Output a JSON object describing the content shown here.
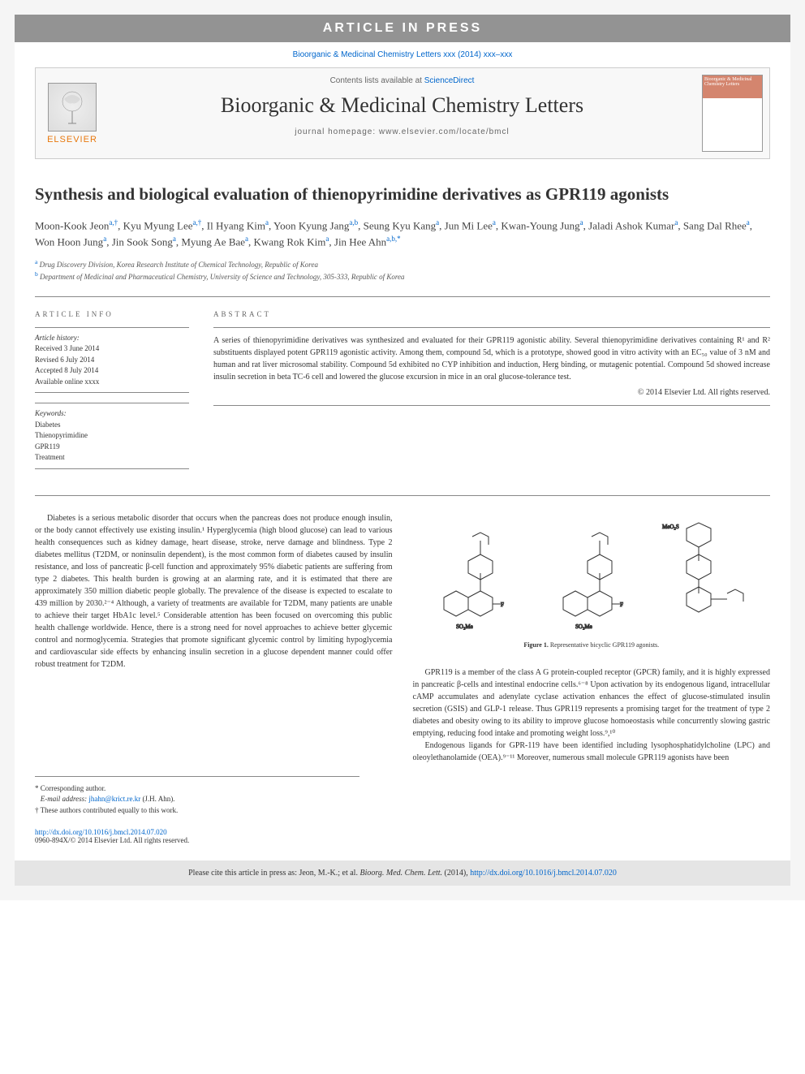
{
  "banner": "ARTICLE IN PRESS",
  "journalRef": "Bioorganic & Medicinal Chemistry Letters xxx (2014) xxx–xxx",
  "header": {
    "publisherText": "ELSEVIER",
    "contentsPrefix": "Contents lists available at ",
    "contentsLink": "ScienceDirect",
    "journalTitle": "Bioorganic & Medicinal Chemistry Letters",
    "homepagePrefix": "journal homepage: ",
    "homepage": "www.elsevier.com/locate/bmcl",
    "coverLabel": "Bioorganic & Medicinal Chemistry Letters"
  },
  "title": "Synthesis and biological evaluation of thienopyrimidine derivatives as GPR119 agonists",
  "authors": [
    {
      "name": "Moon-Kook Jeon",
      "sup": "a,†"
    },
    {
      "name": "Kyu Myung Lee",
      "sup": "a,†"
    },
    {
      "name": "Il Hyang Kim",
      "sup": "a"
    },
    {
      "name": "Yoon Kyung Jang",
      "sup": "a,b"
    },
    {
      "name": "Seung Kyu Kang",
      "sup": "a"
    },
    {
      "name": "Jun Mi Lee",
      "sup": "a"
    },
    {
      "name": "Kwan-Young Jung",
      "sup": "a"
    },
    {
      "name": "Jaladi Ashok Kumar",
      "sup": "a"
    },
    {
      "name": "Sang Dal Rhee",
      "sup": "a"
    },
    {
      "name": "Won Hoon Jung",
      "sup": "a"
    },
    {
      "name": "Jin Sook Song",
      "sup": "a"
    },
    {
      "name": "Myung Ae Bae",
      "sup": "a"
    },
    {
      "name": "Kwang Rok Kim",
      "sup": "a"
    },
    {
      "name": "Jin Hee Ahn",
      "sup": "a,b,*"
    }
  ],
  "affiliations": [
    {
      "sup": "a",
      "text": "Drug Discovery Division, Korea Research Institute of Chemical Technology, Republic of Korea"
    },
    {
      "sup": "b",
      "text": "Department of Medicinal and Pharmaceutical Chemistry, University of Science and Technology, 305-333, Republic of Korea"
    }
  ],
  "articleInfo": {
    "heading": "ARTICLE INFO",
    "historyLabel": "Article history:",
    "received": "Received 3 June 2014",
    "revised": "Revised 6 July 2014",
    "accepted": "Accepted 8 July 2014",
    "available": "Available online xxxx",
    "keywordsLabel": "Keywords:",
    "keywords": [
      "Diabetes",
      "Thienopyrimidine",
      "GPR119",
      "Treatment"
    ]
  },
  "abstract": {
    "heading": "ABSTRACT",
    "text": "A series of thienopyrimidine derivatives was synthesized and evaluated for their GPR119 agonistic ability. Several thienopyrimidine derivatives containing R¹ and R² substituents displayed potent GPR119 agonistic activity. Among them, compound 5d, which is a prototype, showed good in vitro activity with an EC₅₀ value of 3 nM and human and rat liver microsomal stability. Compound 5d exhibited no CYP inhibition and induction, Herg binding, or mutagenic potential. Compound 5d showed increase insulin secretion in beta TC-6 cell and lowered the glucose excursion in mice in an oral glucose-tolerance test.",
    "copyright": "© 2014 Elsevier Ltd. All rights reserved."
  },
  "body": {
    "col1p1": "Diabetes is a serious metabolic disorder that occurs when the pancreas does not produce enough insulin, or the body cannot effectively use existing insulin.¹ Hyperglycemia (high blood glucose) can lead to various health consequences such as kidney damage, heart disease, stroke, nerve damage and blindness. Type 2 diabetes mellitus (T2DM, or noninsulin dependent), is the most common form of diabetes caused by insulin resistance, and loss of pancreatic β-cell function and approximately 95% diabetic patients are suffering from type 2 diabetes. This health burden is growing at an alarming rate, and it is estimated that there are approximately 350 million diabetic people globally. The prevalence of the disease is expected to escalate to 439 million by 2030.²⁻⁴ Although, a variety of treatments are available for T2DM, many patients are unable to achieve their target HbA1c level.⁵ Considerable attention has been focused on overcoming this public health challenge worldwide. Hence, there is a strong need for novel approaches to achieve better glycemic control and normoglycemia. Strategies that promote significant glycemic control by limiting hypoglycemia and cardiovascular side effects by enhancing insulin secretion in a glucose dependent manner could offer robust treatment for T2DM.",
    "figCaption": "Figure 1. Representative bicyclic GPR119 agonists.",
    "col2p1": "GPR119 is a member of the class A G protein-coupled receptor (GPCR) family, and it is highly expressed in pancreatic β-cells and intestinal endocrine cells.⁶⁻⁸ Upon activation by its endogenous ligand, intracellular cAMP accumulates and adenylate cyclase activation enhances the effect of glucose-stimulated insulin secretion (GSIS) and GLP-1 release. Thus GPR119 represents a promising target for the treatment of type 2 diabetes and obesity owing to its ability to improve glucose homoeostasis while concurrently slowing gastric emptying, reducing food intake and promoting weight loss.⁹,¹⁰",
    "col2p2": "Endogenous ligands for GPR-119 have been identified including lysophosphatidylcholine (LPC) and oleoylethanolamide (OEA).⁹⁻¹¹ Moreover, numerous small molecule GPR119 agonists have been"
  },
  "footnotes": {
    "corr": "* Corresponding author.",
    "emailLabel": "E-mail address: ",
    "email": "jhahn@krict.re.kr",
    "emailSuffix": " (J.H. Ahn).",
    "equal": "† These authors contributed equally to this work."
  },
  "doi": {
    "url": "http://dx.doi.org/10.1016/j.bmcl.2014.07.020",
    "issn": "0960-894X/© 2014 Elsevier Ltd. All rights reserved."
  },
  "citeFooter": {
    "prefix": "Please cite this article in press as: Jeon, M.-K.; et al. ",
    "journal": "Bioorg. Med. Chem. Lett.",
    "year": " (2014), ",
    "link": "http://dx.doi.org/10.1016/j.bmcl.2014.07.020"
  },
  "colors": {
    "bannerBg": "#939393",
    "link": "#0066cc",
    "elsevierOrange": "#e8780d"
  }
}
